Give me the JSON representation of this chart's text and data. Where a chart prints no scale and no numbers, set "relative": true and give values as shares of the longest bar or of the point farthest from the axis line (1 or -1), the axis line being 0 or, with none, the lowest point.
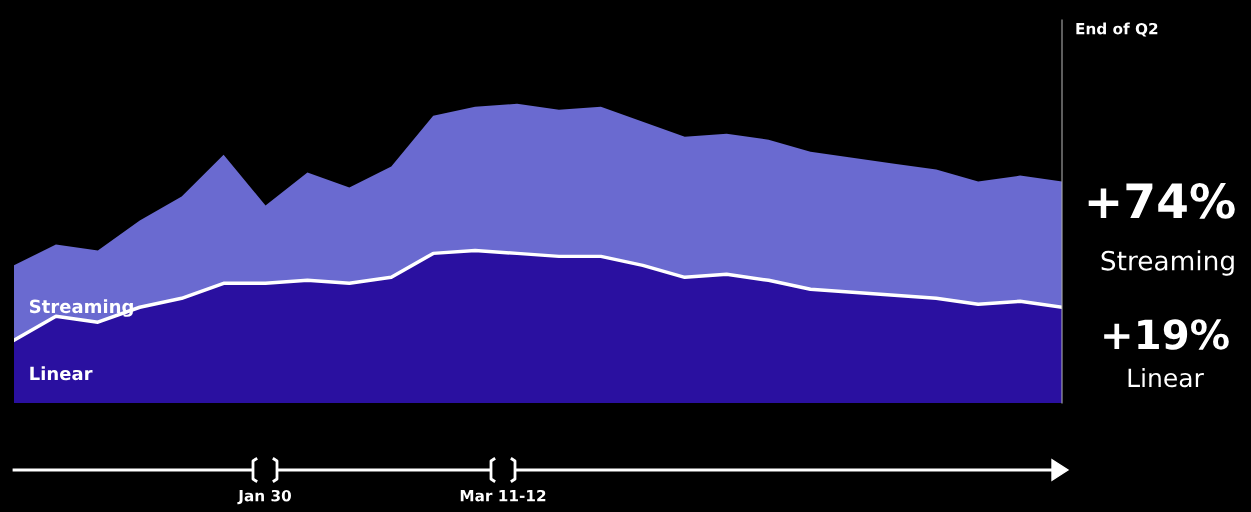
{
  "chart_data": {
    "type": "area",
    "stacked": true,
    "relative": true,
    "legend": false,
    "categories": [
      null,
      null,
      null,
      null,
      null,
      null,
      null,
      null,
      null,
      null,
      null,
      null,
      null,
      null,
      null,
      null,
      null,
      null,
      null,
      null,
      null,
      null,
      null,
      null,
      null,
      null
    ],
    "series": [
      {
        "name": "Linear",
        "color": "#2a10a0",
        "values": [
          0.21,
          0.29,
          0.27,
          0.32,
          0.35,
          0.4,
          0.4,
          0.41,
          0.4,
          0.42,
          0.5,
          0.51,
          0.5,
          0.49,
          0.49,
          0.46,
          0.42,
          0.43,
          0.41,
          0.38,
          0.37,
          0.36,
          0.35,
          0.33,
          0.34,
          0.32
        ]
      },
      {
        "name": "Streaming",
        "color": "#6a6ad0",
        "values": [
          0.25,
          0.24,
          0.24,
          0.29,
          0.34,
          0.43,
          0.26,
          0.36,
          0.32,
          0.37,
          0.46,
          0.48,
          0.5,
          0.49,
          0.5,
          0.48,
          0.47,
          0.47,
          0.47,
          0.46,
          0.45,
          0.44,
          0.43,
          0.41,
          0.42,
          0.42
        ]
      }
    ],
    "annotations": [
      "End of Q2",
      "+74%",
      "Streaming",
      "+19%",
      "Linear",
      "Jan 30",
      "Mar 11-12"
    ]
  }
}
